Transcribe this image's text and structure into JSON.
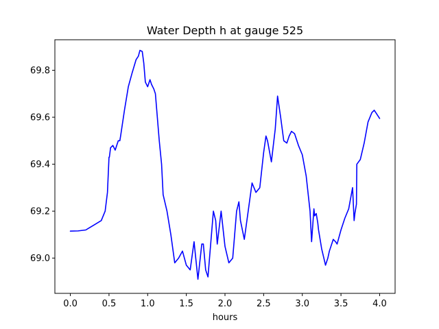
{
  "chart_data": {
    "type": "line",
    "title": "Water Depth h at gauge 525",
    "xlabel": "hours",
    "ylabel": "",
    "xlim": [
      -0.2,
      4.2
    ],
    "ylim": [
      68.85,
      69.93
    ],
    "xticks": [
      0.0,
      0.5,
      1.0,
      1.5,
      2.0,
      2.5,
      3.0,
      3.5,
      4.0
    ],
    "xtick_labels": [
      "0.0",
      "0.5",
      "1.0",
      "1.5",
      "2.0",
      "2.5",
      "3.0",
      "3.5",
      "4.0"
    ],
    "yticks": [
      69.0,
      69.2,
      69.4,
      69.6,
      69.8
    ],
    "ytick_labels": [
      "69.0",
      "69.2",
      "69.4",
      "69.6",
      "69.8"
    ],
    "grid": false,
    "series": [
      {
        "color": "#0000ff",
        "x": [
          0.0,
          0.1,
          0.2,
          0.3,
          0.4,
          0.45,
          0.48,
          0.5,
          0.505,
          0.52,
          0.55,
          0.58,
          0.6,
          0.62,
          0.64,
          0.65,
          0.7,
          0.75,
          0.8,
          0.85,
          0.88,
          0.9,
          0.93,
          0.95,
          0.97,
          1.0,
          1.03,
          1.05,
          1.08,
          1.1,
          1.12,
          1.15,
          1.18,
          1.2,
          1.25,
          1.3,
          1.35,
          1.4,
          1.45,
          1.5,
          1.55,
          1.6,
          1.65,
          1.7,
          1.72,
          1.75,
          1.78,
          1.8,
          1.85,
          1.88,
          1.9,
          1.95,
          2.0,
          2.05,
          2.1,
          2.15,
          2.18,
          2.2,
          2.25,
          2.3,
          2.35,
          2.4,
          2.45,
          2.5,
          2.53,
          2.55,
          2.6,
          2.65,
          2.68,
          2.72,
          2.76,
          2.8,
          2.83,
          2.86,
          2.9,
          2.95,
          3.0,
          3.05,
          3.1,
          3.12,
          3.15,
          3.16,
          3.18,
          3.2,
          3.21,
          3.25,
          3.3,
          3.33,
          3.35,
          3.4,
          3.43,
          3.45,
          3.5,
          3.55,
          3.6,
          3.65,
          3.67,
          3.68,
          3.7,
          3.705,
          3.75,
          3.8,
          3.85,
          3.9,
          3.93,
          3.95,
          4.0
        ],
        "y": [
          69.115,
          69.116,
          69.12,
          69.14,
          69.16,
          69.2,
          69.28,
          69.43,
          69.43,
          69.47,
          69.48,
          69.46,
          69.48,
          69.5,
          69.5,
          69.52,
          69.63,
          69.73,
          69.79,
          69.845,
          69.86,
          69.885,
          69.88,
          69.83,
          69.75,
          69.73,
          69.76,
          69.74,
          69.72,
          69.7,
          69.62,
          69.5,
          69.4,
          69.27,
          69.2,
          69.1,
          68.98,
          69.0,
          69.03,
          68.97,
          68.95,
          69.07,
          68.91,
          69.06,
          69.06,
          68.95,
          68.92,
          69.0,
          69.2,
          69.16,
          69.06,
          69.2,
          69.05,
          68.98,
          69.0,
          69.2,
          69.24,
          69.16,
          69.08,
          69.2,
          69.32,
          69.28,
          69.3,
          69.45,
          69.52,
          69.5,
          69.41,
          69.55,
          69.69,
          69.6,
          69.5,
          69.49,
          69.52,
          69.54,
          69.53,
          69.48,
          69.44,
          69.35,
          69.2,
          69.07,
          69.21,
          69.18,
          69.19,
          69.15,
          69.12,
          69.04,
          68.97,
          69.0,
          69.03,
          69.08,
          69.07,
          69.06,
          69.12,
          69.17,
          69.21,
          69.3,
          69.16,
          69.19,
          69.23,
          69.4,
          69.42,
          69.49,
          69.58,
          69.62,
          69.63,
          69.62,
          69.595
        ]
      }
    ]
  }
}
